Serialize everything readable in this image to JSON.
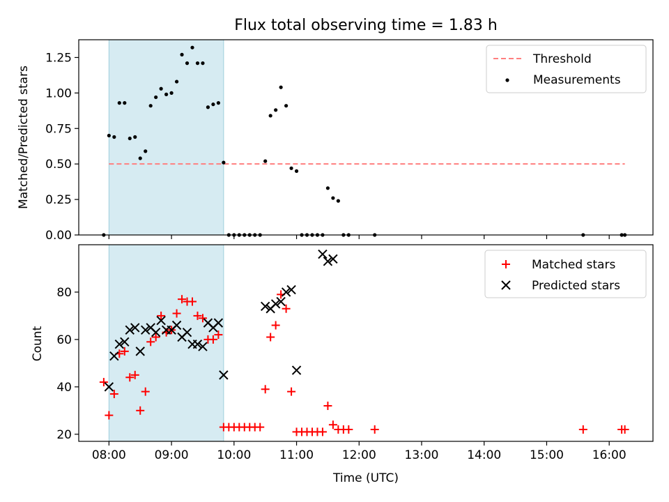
{
  "title": "Flux total observing time = 1.83 h",
  "chart_data": [
    {
      "type": "scatter",
      "xlabel": "",
      "ylabel": "Matched/Predicted stars",
      "xlim": [
        "07:31",
        "16:42"
      ],
      "ylim": [
        0,
        1.375
      ],
      "yticks": [
        0,
        0.25,
        0.5,
        0.75,
        1.0,
        1.25
      ],
      "ytick_labels": [
        "0.00",
        "0.25",
        "0.50",
        "0.75",
        "1.00",
        "1.25"
      ],
      "x_ticks_shared": true,
      "observing_window": [
        "08:00",
        "09:50"
      ],
      "legend": {
        "placement": "upper right",
        "entries": [
          "Threshold",
          "Measurements"
        ]
      },
      "threshold": {
        "name": "Threshold",
        "y": 0.5,
        "x": [
          "08:00",
          "16:15"
        ],
        "color": "#ff7f7f",
        "style": "dashed"
      },
      "series": [
        {
          "name": "Measurements",
          "color": "#000000",
          "marker": "dot",
          "x": [
            "07:55",
            "08:00",
            "08:05",
            "08:10",
            "08:15",
            "08:20",
            "08:25",
            "08:30",
            "08:35",
            "08:40",
            "08:45",
            "08:50",
            "08:55",
            "09:00",
            "09:05",
            "09:10",
            "09:15",
            "09:20",
            "09:25",
            "09:30",
            "09:35",
            "09:40",
            "09:45",
            "09:50",
            "09:55",
            "10:00",
            "10:05",
            "10:10",
            "10:15",
            "10:20",
            "10:25",
            "10:30",
            "10:35",
            "10:40",
            "10:45",
            "10:50",
            "10:55",
            "11:00",
            "11:05",
            "11:10",
            "11:15",
            "11:20",
            "11:25",
            "11:30",
            "11:35",
            "11:40",
            "11:45",
            "11:50",
            "12:15",
            "15:35",
            "16:12",
            "16:15"
          ],
          "y": [
            0,
            0.7,
            0.69,
            0.93,
            0.93,
            0.68,
            0.69,
            0.54,
            0.59,
            0.91,
            0.97,
            1.03,
            0.99,
            1.0,
            1.08,
            1.27,
            1.21,
            1.32,
            1.21,
            1.21,
            0.9,
            0.92,
            0.93,
            0.51,
            0,
            0,
            0,
            0,
            0,
            0,
            0,
            0.52,
            0.84,
            0.88,
            1.04,
            0.91,
            0.47,
            0.45,
            0,
            0,
            0,
            0,
            0,
            0.33,
            0.26,
            0.24,
            0,
            0,
            0,
            0,
            0,
            0
          ]
        }
      ]
    },
    {
      "type": "scatter",
      "xlabel": "Time (UTC)",
      "ylabel": "Count",
      "xlim": [
        "07:31",
        "16:42"
      ],
      "ylim": [
        17,
        100
      ],
      "yticks": [
        20,
        40,
        60,
        80
      ],
      "ytick_labels": [
        "20",
        "40",
        "60",
        "80"
      ],
      "xticks": [
        "08:00",
        "09:00",
        "10:00",
        "11:00",
        "12:00",
        "13:00",
        "14:00",
        "15:00",
        "16:00"
      ],
      "observing_window": [
        "08:00",
        "09:50"
      ],
      "legend": {
        "placement": "upper right",
        "entries": [
          "Matched stars",
          "Predicted stars"
        ]
      },
      "series": [
        {
          "name": "Matched stars",
          "color": "#ff0000",
          "marker": "plus",
          "x": [
            "07:55",
            "08:00",
            "08:05",
            "08:10",
            "08:15",
            "08:20",
            "08:25",
            "08:30",
            "08:35",
            "08:40",
            "08:45",
            "08:50",
            "08:55",
            "09:00",
            "09:05",
            "09:10",
            "09:15",
            "09:20",
            "09:25",
            "09:30",
            "09:35",
            "09:40",
            "09:45",
            "09:50",
            "09:55",
            "10:00",
            "10:05",
            "10:10",
            "10:15",
            "10:20",
            "10:25",
            "10:30",
            "10:35",
            "10:40",
            "10:45",
            "10:50",
            "10:55",
            "11:00",
            "11:05",
            "11:10",
            "11:15",
            "11:20",
            "11:25",
            "11:30",
            "11:35",
            "11:40",
            "11:45",
            "11:50",
            "12:15",
            "15:35",
            "16:12",
            "16:15"
          ],
          "y": [
            42,
            28,
            37,
            54,
            55,
            44,
            45,
            30,
            38,
            59,
            61,
            70,
            63,
            64,
            71,
            77,
            76,
            76,
            70,
            69,
            60,
            60,
            62,
            23,
            23,
            23,
            23,
            23,
            23,
            23,
            23,
            39,
            61,
            66,
            79,
            73,
            38,
            21,
            21,
            21,
            21,
            21,
            21,
            32,
            24,
            22,
            22,
            22,
            22,
            22,
            22,
            22
          ]
        },
        {
          "name": "Predicted stars",
          "color": "#000000",
          "marker": "x",
          "x": [
            "08:00",
            "08:05",
            "08:10",
            "08:15",
            "08:20",
            "08:25",
            "08:30",
            "08:35",
            "08:40",
            "08:45",
            "08:50",
            "08:55",
            "09:00",
            "09:05",
            "09:10",
            "09:15",
            "09:20",
            "09:25",
            "09:30",
            "09:35",
            "09:40",
            "09:45",
            "09:50",
            "10:30",
            "10:35",
            "10:40",
            "10:45",
            "10:50",
            "10:55",
            "11:00",
            "11:25",
            "11:30",
            "11:35"
          ],
          "y": [
            40,
            53,
            58,
            59,
            64,
            65,
            55,
            64,
            65,
            63,
            68,
            64,
            64,
            66,
            61,
            63,
            58,
            58,
            57,
            67,
            65,
            67,
            45,
            74,
            73,
            75,
            76,
            80,
            81,
            47,
            96,
            93,
            94
          ]
        }
      ]
    }
  ]
}
